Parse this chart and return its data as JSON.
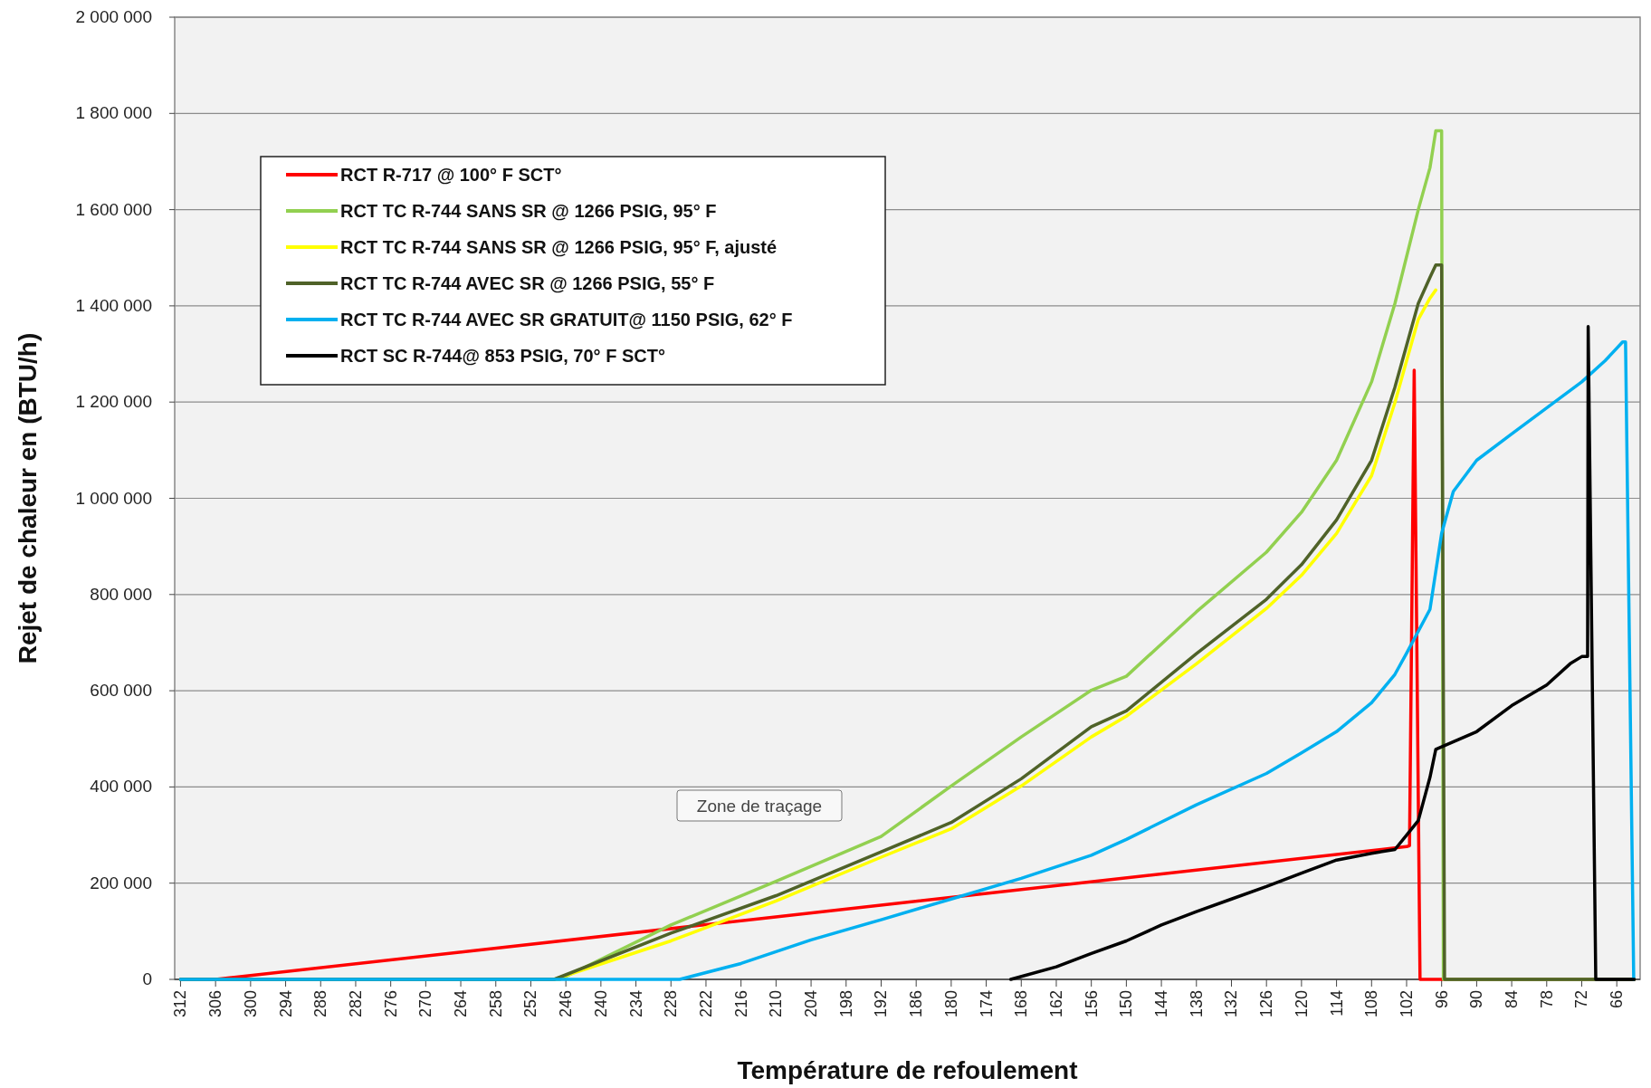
{
  "chart_data": {
    "type": "line",
    "xlabel": "Température de refoulement",
    "ylabel": "Rejet de chaleur en (BTU/h)",
    "xlim": [
      313,
      62
    ],
    "xticks": [
      312,
      306,
      300,
      294,
      288,
      282,
      276,
      270,
      264,
      258,
      252,
      246,
      240,
      234,
      228,
      222,
      216,
      210,
      204,
      198,
      192,
      186,
      180,
      174,
      168,
      162,
      156,
      150,
      144,
      138,
      132,
      126,
      120,
      114,
      108,
      102,
      96,
      90,
      84,
      78,
      72,
      66
    ],
    "ylim": [
      0,
      2000000
    ],
    "yticks": [
      {
        "value": 0,
        "label": "0"
      },
      {
        "value": 200000,
        "label": "200 000"
      },
      {
        "value": 400000,
        "label": "400 000"
      },
      {
        "value": 600000,
        "label": "600 000"
      },
      {
        "value": 800000,
        "label": "800 000"
      },
      {
        "value": 1000000,
        "label": "1 000 000"
      },
      {
        "value": 1200000,
        "label": "1 200 000"
      },
      {
        "value": 1400000,
        "label": "1 400 000"
      },
      {
        "value": 1600000,
        "label": "1 600 000"
      },
      {
        "value": 1800000,
        "label": "1 800 000"
      },
      {
        "value": 2000000,
        "label": "2 000 000"
      }
    ],
    "grid": "y",
    "legend": "top left",
    "marker": "none",
    "line_style": "solid",
    "annotations": [
      "Zone de traçage"
    ],
    "series": [
      {
        "name": "RCT R-717 @ 100° F SCT°",
        "color": "#ff0000",
        "x": [
          312,
          306,
          102,
          101.5,
          100.7,
          99.7,
          63
        ],
        "values": [
          0,
          0,
          276000,
          278000,
          1266000,
          0,
          0
        ]
      },
      {
        "name": "RCT TC R-744 SANS SR @ 1266 PSIG, 95° F",
        "color": "#92d050",
        "x": [
          312,
          247,
          228,
          210,
          192,
          180,
          168,
          156,
          150,
          138,
          126,
          120,
          114,
          108,
          104,
          100,
          98,
          97,
          96,
          95.7,
          63
        ],
        "values": [
          0,
          0,
          113000,
          204000,
          297000,
          402000,
          504000,
          601000,
          630000,
          764000,
          888000,
          971000,
          1079000,
          1242000,
          1405000,
          1600000,
          1687000,
          1764000,
          1764000,
          0,
          0
        ]
      },
      {
        "name": "RCT TC R-744 SANS SR @ 1266 PSIG, 95° F, ajusté",
        "color": "#ffff00",
        "x": [
          248,
          228,
          210,
          192,
          180,
          168,
          156,
          150,
          138,
          126,
          120,
          114,
          108,
          104,
          102,
          100,
          98,
          97
        ],
        "values": [
          0,
          80000,
          163000,
          254000,
          313000,
          402000,
          504000,
          547000,
          656000,
          771000,
          840000,
          927000,
          1047000,
          1199000,
          1286000,
          1372000,
          1416000,
          1433000
        ]
      },
      {
        "name": "RCT TC R-744 AVEC SR @ 1266 PSIG, 55° F",
        "color": "#4f6228",
        "x": [
          312,
          248,
          228,
          210,
          192,
          180,
          168,
          156,
          150,
          138,
          126,
          120,
          114,
          108,
          104,
          102,
          100,
          98,
          97,
          96,
          95.5,
          63
        ],
        "values": [
          0,
          0,
          96000,
          174000,
          265000,
          326000,
          417000,
          525000,
          558000,
          677000,
          790000,
          862000,
          955000,
          1079000,
          1231000,
          1318000,
          1405000,
          1459000,
          1485000,
          1485000,
          0,
          0
        ]
      },
      {
        "name": "RCT TC R-744 AVEC SR GRATUIT@ 1150 PSIG, 62° F",
        "color": "#00b0f0",
        "x": [
          312,
          226.5,
          216,
          204,
          192,
          180,
          168,
          156,
          150,
          138,
          126,
          120,
          114,
          108,
          104,
          102,
          98,
          96,
          94,
          90,
          84,
          78,
          72,
          68,
          65,
          64.5,
          63.1
        ],
        "values": [
          0,
          0,
          33000,
          82000,
          124000,
          167000,
          210000,
          258000,
          291000,
          363000,
          428000,
          471000,
          515000,
          575000,
          634000,
          678000,
          769000,
          927000,
          1014000,
          1079000,
          1134000,
          1188000,
          1242000,
          1286000,
          1325000,
          1325000,
          0
        ]
      },
      {
        "name": "RCT SC R-744@ 853 PSIG, 70° F SCT°",
        "color": "#000000",
        "x": [
          169.8,
          162,
          156,
          150,
          144,
          138,
          132,
          126,
          120,
          114,
          108,
          104,
          102,
          100,
          98,
          97,
          90,
          84,
          78,
          74,
          72,
          71,
          70.9,
          69.6,
          63
        ],
        "values": [
          0,
          26000,
          54000,
          80000,
          113000,
          141000,
          167000,
          193000,
          221000,
          248000,
          262000,
          270000,
          300000,
          330000,
          420000,
          478000,
          515000,
          569000,
          612000,
          656000,
          671000,
          671000,
          1357000,
          0,
          0
        ]
      }
    ]
  }
}
